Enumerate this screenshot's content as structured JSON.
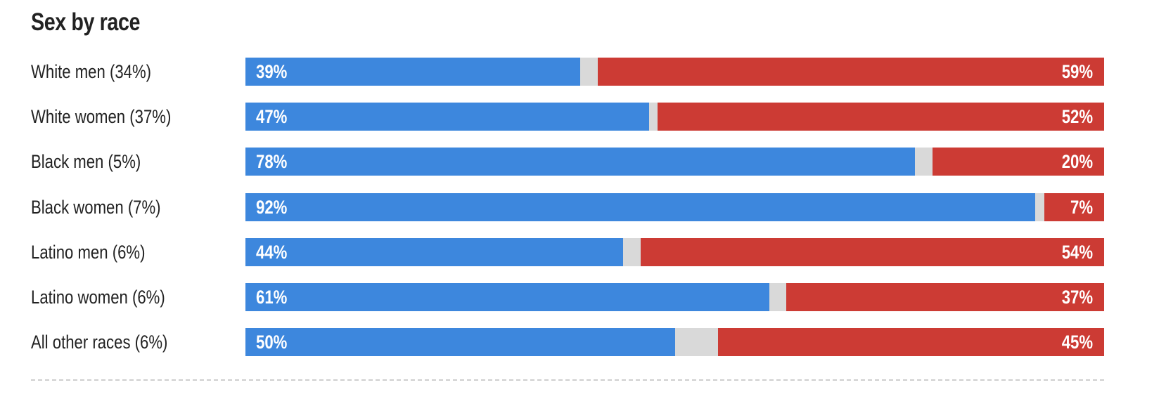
{
  "chart_data": {
    "type": "bar",
    "orientation": "horizontal-stacked",
    "title": "Sex by race",
    "categories": [
      "White men (34%)",
      "White women (37%)",
      "Black men (5%)",
      "Black women (7%)",
      "Latino men (6%)",
      "Latino women (6%)",
      "All other races (6%)"
    ],
    "series": [
      {
        "values": [
          39,
          47,
          78,
          92,
          44,
          61,
          50
        ],
        "labels": [
          "39%",
          "47%",
          "78%",
          "92%",
          "44%",
          "61%",
          "50%"
        ],
        "color": "#3d87dd"
      },
      {
        "values": [
          59,
          52,
          20,
          7,
          54,
          37,
          45
        ],
        "labels": [
          "59%",
          "52%",
          "20%",
          "7%",
          "54%",
          "37%",
          "45%"
        ],
        "color": "#cc3b34"
      }
    ],
    "remainder_color": "#d9d9d9",
    "xlim": [
      0,
      100
    ],
    "grid": false,
    "legend": "none"
  }
}
